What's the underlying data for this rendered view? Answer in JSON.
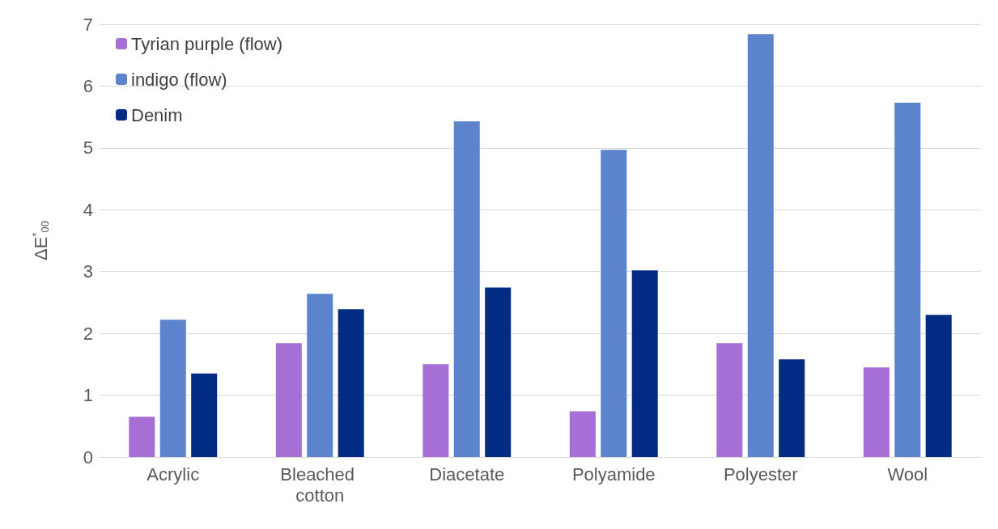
{
  "chart_data": {
    "type": "bar",
    "ylabel": "ΔE$^{*}$$_{00}$",
    "categories": [
      "Acrylic",
      "Bleached cotton",
      "Diacetate",
      "Polyamide",
      "Polyester",
      "Wool"
    ],
    "series": [
      {
        "name": "Tyrian purple (flow)",
        "color": "#a66fd5",
        "values": [
          0.65,
          1.84,
          1.5,
          0.74,
          1.84,
          1.45
        ]
      },
      {
        "name": "indigo (flow)",
        "color": "#5b84cd",
        "values": [
          2.22,
          2.64,
          5.43,
          4.97,
          6.84,
          5.73
        ]
      },
      {
        "name": "Denim",
        "color": "#022c83",
        "values": [
          1.35,
          2.39,
          2.74,
          3.02,
          1.58,
          2.3
        ]
      }
    ],
    "ylim": [
      0,
      7
    ],
    "yticks": [
      0,
      1,
      2,
      3,
      4,
      5,
      6,
      7
    ],
    "grid": "y",
    "legend": "top left"
  }
}
